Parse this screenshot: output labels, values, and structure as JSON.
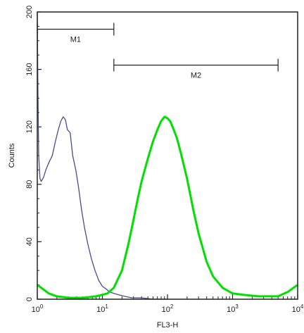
{
  "chart_data": {
    "type": "line",
    "xlabel": "FL3-H",
    "ylabel": "Counts",
    "x_scale": "log",
    "xlim": [
      1,
      10000
    ],
    "ylim": [
      0,
      200
    ],
    "x_ticks": [
      {
        "base": "10",
        "exp": "0",
        "value": 1
      },
      {
        "base": "10",
        "exp": "1",
        "value": 10
      },
      {
        "base": "10",
        "exp": "2",
        "value": 100
      },
      {
        "base": "10",
        "exp": "3",
        "value": 1000
      },
      {
        "base": "10",
        "exp": "4",
        "value": 10000
      }
    ],
    "y_ticks": [
      "0",
      "40",
      "80",
      "120",
      "160",
      "200"
    ],
    "series": [
      {
        "color": "#4b4b8c",
        "x": [
          1.0,
          1.02,
          1.05,
          1.1,
          1.15,
          1.25,
          1.35,
          1.5,
          1.7,
          1.9,
          2.1,
          2.3,
          2.5,
          2.7,
          2.9,
          3.2,
          3.5,
          3.9,
          4.3,
          4.8,
          5.3,
          6.0,
          6.8,
          7.7,
          8.8,
          10,
          11.5,
          13,
          15,
          18,
          22,
          28,
          40,
          60,
          100
        ],
        "y": [
          200,
          150,
          100,
          84,
          82,
          85,
          90,
          95,
          100,
          110,
          118,
          124,
          127,
          125,
          118,
          116,
          100,
          90,
          78,
          62,
          50,
          38,
          28,
          20,
          13,
          9,
          7,
          5,
          4,
          3,
          2,
          1,
          1,
          0,
          0
        ]
      },
      {
        "color": "#00e000",
        "x": [
          1,
          1.5,
          2,
          3,
          5,
          8,
          12,
          15,
          20,
          25,
          30,
          35,
          40,
          50,
          60,
          70,
          80,
          90,
          100,
          110,
          120,
          140,
          160,
          200,
          250,
          300,
          400,
          500,
          700,
          1000,
          1500,
          2500,
          5000,
          7000,
          10000
        ],
        "y": [
          10,
          4,
          2,
          1,
          1,
          2,
          4,
          8,
          20,
          38,
          55,
          70,
          82,
          98,
          110,
          118,
          124,
          127,
          126,
          124,
          120,
          112,
          102,
          84,
          62,
          46,
          26,
          16,
          8,
          4,
          3,
          2,
          2,
          5,
          10
        ]
      }
    ],
    "markers": [
      {
        "label": "M1",
        "range": [
          1,
          15
        ],
        "y": 188
      },
      {
        "label": "M2",
        "range": [
          15,
          5000
        ],
        "y": 163
      }
    ]
  }
}
